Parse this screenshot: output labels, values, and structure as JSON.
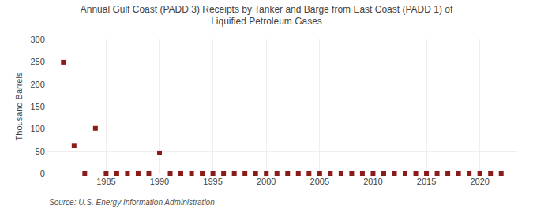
{
  "chart_data": {
    "type": "scatter",
    "title": "Annual Gulf Coast (PADD 3) Receipts by Tanker and Barge from East Coast (PADD 1) of\nLiquified Petroleum Gases",
    "ylabel": "Thousand Barrels",
    "annotations": [
      "Source: U.S. Energy Information Administration"
    ],
    "x": [
      1981,
      1982,
      1983,
      1984,
      1985,
      1986,
      1987,
      1988,
      1989,
      1990,
      1991,
      1992,
      1993,
      1994,
      1995,
      1996,
      1997,
      1998,
      1999,
      2000,
      2001,
      2002,
      2003,
      2004,
      2005,
      2006,
      2007,
      2008,
      2009,
      2010,
      2011,
      2012,
      2013,
      2014,
      2015,
      2016,
      2017,
      2018,
      2019,
      2020,
      2021,
      2022
    ],
    "values": [
      249,
      63,
      0,
      101,
      0,
      0,
      0,
      0,
      0,
      46,
      0,
      0,
      0,
      0,
      0,
      0,
      0,
      0,
      0,
      0,
      0,
      0,
      0,
      0,
      0,
      0,
      0,
      0,
      0,
      0,
      0,
      0,
      0,
      0,
      0,
      0,
      0,
      0,
      0,
      0,
      0,
      0
    ],
    "color": "#8b1a1a",
    "marker": "square",
    "xlim": [
      1979.5,
      2023.5
    ],
    "xticks": [
      1985,
      1990,
      1995,
      2000,
      2005,
      2010,
      2015,
      2020
    ],
    "ylim": [
      0,
      300
    ],
    "yticks": [
      0,
      50,
      100,
      150,
      200,
      250,
      300
    ],
    "grid": true
  }
}
